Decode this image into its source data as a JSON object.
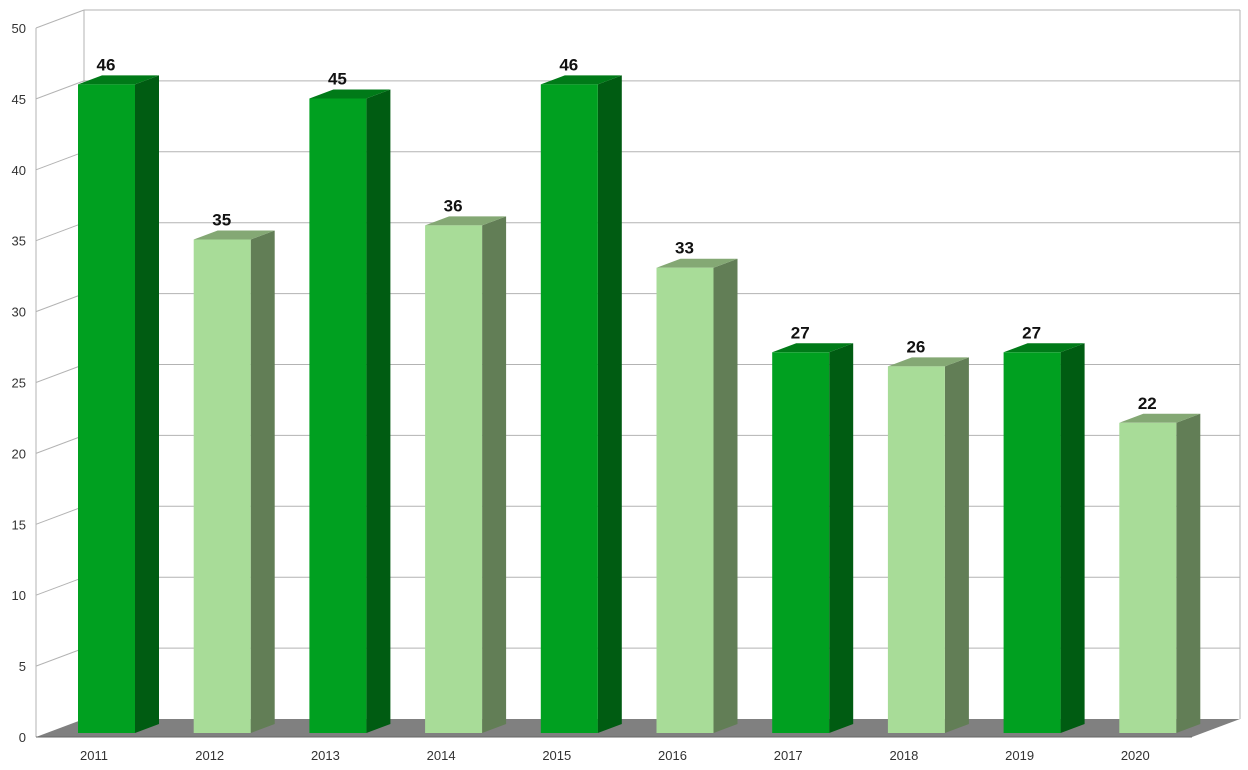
{
  "chart_data": {
    "type": "bar",
    "style": "3d",
    "categories": [
      "2011",
      "2012",
      "2013",
      "2014",
      "2015",
      "2016",
      "2017",
      "2018",
      "2019",
      "2020"
    ],
    "values": [
      46,
      35,
      45,
      36,
      46,
      33,
      27,
      26,
      27,
      22
    ],
    "ylim": [
      0,
      50
    ],
    "yticks": [
      0,
      5,
      10,
      15,
      20,
      25,
      30,
      35,
      40,
      45,
      50
    ],
    "grid": true,
    "legend": "none",
    "title": "",
    "xlabel": "",
    "ylabel": "",
    "colors": {
      "dark_front": "#00a020",
      "dark_side": "#005c12",
      "dark_top": "#007a18",
      "light_front": "#a8dc98",
      "light_side": "#627e56",
      "light_top": "#84a874",
      "floor": "#808080",
      "grid": "#b3b3b3"
    }
  }
}
